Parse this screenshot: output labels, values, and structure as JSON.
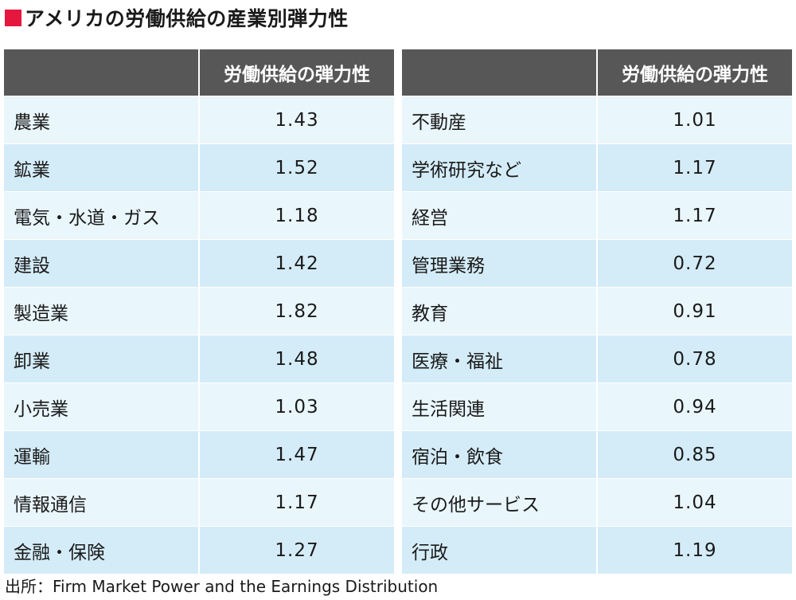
{
  "title": "アメリカの労働供給の産業別弾力性",
  "source": "出所：Firm Market Power and the Earnings Distribution",
  "colors": {
    "accent": "#e5173f",
    "header_bg": "#575757",
    "row_light": "#e9f6fc",
    "row_dark": "#d4ecf8"
  },
  "chart_data": {
    "type": "table",
    "title": "アメリカの労働供給の産業別弾力性",
    "columns": [
      "",
      "労働供給の弾力性"
    ],
    "rows": [
      [
        "農業",
        "1.43"
      ],
      [
        "鉱業",
        "1.52"
      ],
      [
        "電気・水道・ガス",
        "1.18"
      ],
      [
        "建設",
        "1.42"
      ],
      [
        "製造業",
        "1.82"
      ],
      [
        "卸業",
        "1.48"
      ],
      [
        "小売業",
        "1.03"
      ],
      [
        "運輸",
        "1.47"
      ],
      [
        "情報通信",
        "1.17"
      ],
      [
        "金融・保険",
        "1.27"
      ],
      [
        "不動産",
        "1.01"
      ],
      [
        "学術研究など",
        "1.17"
      ],
      [
        "経営",
        "1.17"
      ],
      [
        "管理業務",
        "0.72"
      ],
      [
        "教育",
        "0.91"
      ],
      [
        "医療・福祉",
        "0.78"
      ],
      [
        "生活関連",
        "0.94"
      ],
      [
        "宿泊・飲食",
        "0.85"
      ],
      [
        "その他サービス",
        "1.04"
      ],
      [
        "行政",
        "1.19"
      ]
    ]
  }
}
